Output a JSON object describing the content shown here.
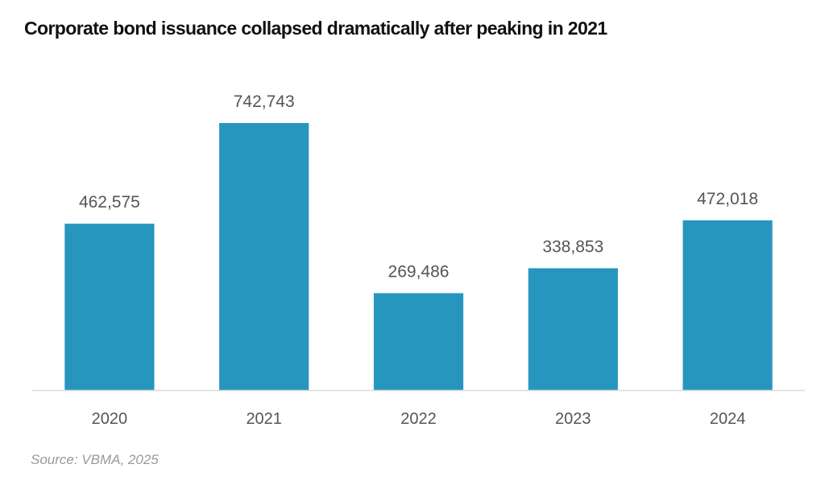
{
  "chart_data": {
    "type": "bar",
    "title": "Corporate bond issuance collapsed dramatically after peaking in 2021",
    "categories": [
      "2020",
      "2021",
      "2022",
      "2023",
      "2024"
    ],
    "values": [
      462575,
      742743,
      269486,
      338853,
      472018
    ],
    "data_labels": [
      "462,575",
      "742,743",
      "269,486",
      "338,853",
      "472,018"
    ],
    "xlabel": "",
    "ylabel": "",
    "ylim": [
      0,
      838900
    ],
    "grid": false,
    "legend": "none",
    "bar_color": "#2796BF",
    "source": "Source: VBMA, 2025"
  }
}
